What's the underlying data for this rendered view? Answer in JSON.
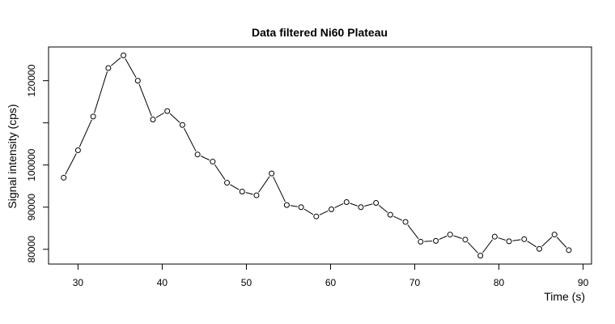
{
  "chart_data": {
    "type": "line",
    "title": "Data filtered Ni60 Plateau",
    "xlabel": "Time (s)",
    "ylabel": "Signal intensity (cps)",
    "xlim": [
      26.5,
      91.0
    ],
    "ylim": [
      76500,
      128000
    ],
    "xticks": [
      30,
      40,
      50,
      60,
      70,
      80,
      90
    ],
    "yticks": [
      80000,
      90000,
      100000,
      110000,
      120000
    ],
    "ytick_labels": [
      "80000",
      "90000",
      "100000",
      "",
      "120000"
    ],
    "grid": false,
    "markers": "open-circle",
    "series": [
      {
        "x": [
          28.3,
          30.0,
          31.8,
          33.6,
          35.4,
          37.1,
          38.9,
          40.6,
          42.4,
          44.2,
          46.0,
          47.7,
          49.5,
          51.2,
          53.0,
          54.8,
          56.5,
          58.3,
          60.1,
          61.9,
          63.6,
          65.4,
          67.1,
          68.9,
          70.7,
          72.5,
          74.2,
          76.0,
          77.8,
          79.5,
          81.2,
          83.0,
          84.8,
          86.6,
          88.3
        ],
        "y": [
          97000,
          103500,
          111500,
          123000,
          126000,
          120000,
          110800,
          112800,
          109500,
          102500,
          100800,
          95800,
          93700,
          92800,
          98000,
          90500,
          90000,
          87800,
          89500,
          91200,
          90000,
          91000,
          88200,
          86500,
          81800,
          82000,
          83500,
          82300,
          78500,
          83000,
          81900,
          82400,
          80100,
          83500,
          79800
        ]
      }
    ]
  }
}
